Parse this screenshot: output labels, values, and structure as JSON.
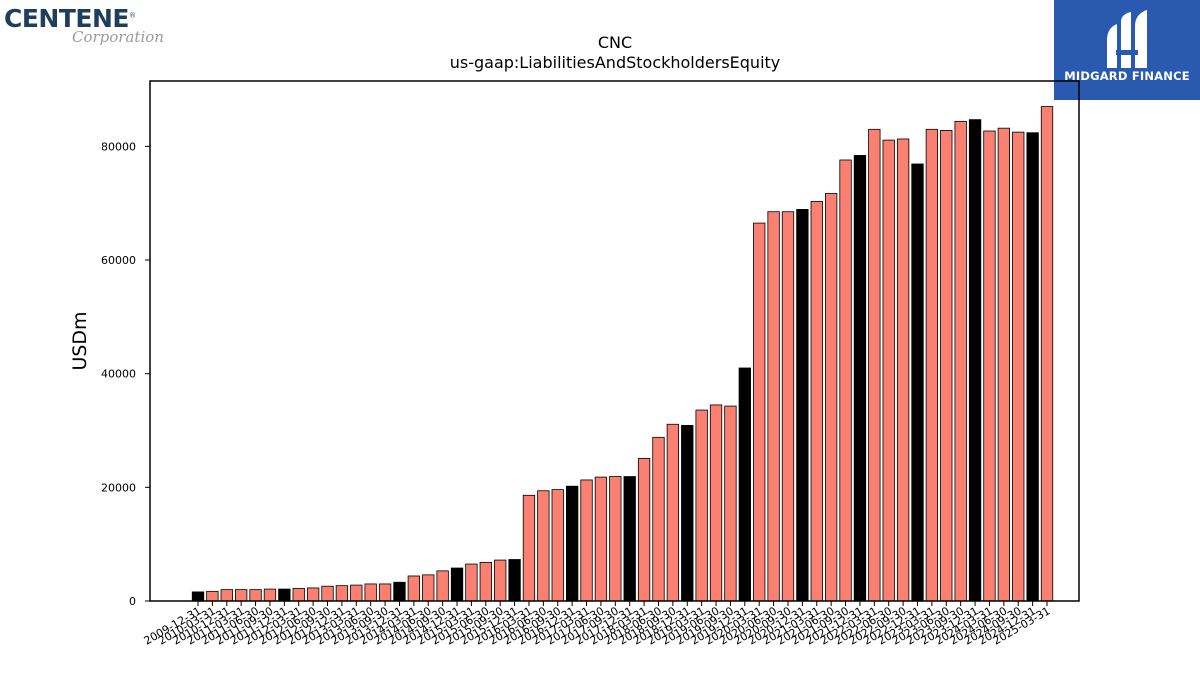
{
  "brand": {
    "name": "CENTENE",
    "registered_mark": "®",
    "subtitle": "Corporation"
  },
  "partner": {
    "name": "MIDGARD FINANCE",
    "icon": "midgard-m-logo-icon",
    "color": "#2a5ab0"
  },
  "chart_data": {
    "type": "bar",
    "title": "CNC",
    "subtitle": "us-gaap:LiabilitiesAndStockholdersEquity",
    "ylabel": "USDm",
    "xlabel": "",
    "ylim": [
      0,
      91500
    ],
    "yticks": [
      0,
      20000,
      40000,
      60000,
      80000
    ],
    "colors": {
      "annual": "#000000",
      "quarterly": "#fa8072",
      "edge": "#000000"
    },
    "legend": "none",
    "grid": false,
    "categories": [
      "2009-12-31",
      "2010-03-31",
      "2010-12-31",
      "2011-03-31",
      "2011-06-30",
      "2011-09-30",
      "2011-12-31",
      "2012-03-31",
      "2012-06-30",
      "2012-09-30",
      "2012-12-31",
      "2013-03-31",
      "2013-06-30",
      "2013-09-30",
      "2013-12-31",
      "2014-03-31",
      "2014-06-30",
      "2014-09-30",
      "2014-12-31",
      "2015-03-31",
      "2015-06-30",
      "2015-09-30",
      "2015-12-31",
      "2016-03-31",
      "2016-06-30",
      "2016-09-30",
      "2016-12-31",
      "2017-03-31",
      "2017-06-30",
      "2017-09-30",
      "2017-12-31",
      "2018-03-31",
      "2018-06-30",
      "2018-09-30",
      "2018-12-31",
      "2019-03-31",
      "2019-06-30",
      "2019-09-30",
      "2019-12-31",
      "2020-03-31",
      "2020-06-30",
      "2020-09-30",
      "2020-12-31",
      "2021-03-31",
      "2021-06-30",
      "2021-09-30",
      "2021-12-31",
      "2022-03-31",
      "2022-06-30",
      "2022-09-30",
      "2022-12-31",
      "2023-03-31",
      "2023-06-30",
      "2023-09-30",
      "2023-12-31",
      "2024-03-31",
      "2024-06-30",
      "2024-09-30",
      "2024-12-31",
      "2025-03-31"
    ],
    "values": [
      1600,
      1700,
      2000,
      2000,
      2000,
      2100,
      2100,
      2200,
      2300,
      2600,
      2700,
      2800,
      3000,
      3000,
      3300,
      4400,
      4600,
      5300,
      5800,
      6500,
      6800,
      7200,
      7300,
      18600,
      19400,
      19600,
      20200,
      21300,
      21800,
      21900,
      21900,
      25100,
      28800,
      31100,
      30900,
      33600,
      34500,
      34300,
      41000,
      66500,
      68500,
      68500,
      68900,
      70300,
      71700,
      77600,
      78400,
      83000,
      81100,
      81300,
      76900,
      83000,
      82800,
      84400,
      84700,
      82700,
      83200,
      82500,
      82400,
      87000
    ],
    "period_type": [
      "annual",
      "quarterly",
      "quarterly",
      "quarterly",
      "quarterly",
      "quarterly",
      "annual",
      "quarterly",
      "quarterly",
      "quarterly",
      "quarterly",
      "quarterly",
      "quarterly",
      "quarterly",
      "annual",
      "quarterly",
      "quarterly",
      "quarterly",
      "annual",
      "quarterly",
      "quarterly",
      "quarterly",
      "annual",
      "quarterly",
      "quarterly",
      "quarterly",
      "annual",
      "quarterly",
      "quarterly",
      "quarterly",
      "annual",
      "quarterly",
      "quarterly",
      "quarterly",
      "annual",
      "quarterly",
      "quarterly",
      "quarterly",
      "annual",
      "quarterly",
      "quarterly",
      "quarterly",
      "annual",
      "quarterly",
      "quarterly",
      "quarterly",
      "annual",
      "quarterly",
      "quarterly",
      "quarterly",
      "annual",
      "quarterly",
      "quarterly",
      "quarterly",
      "annual",
      "quarterly",
      "quarterly",
      "quarterly",
      "annual",
      "quarterly"
    ]
  }
}
